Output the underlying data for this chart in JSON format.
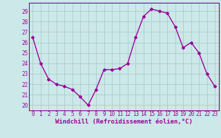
{
  "x": [
    0,
    1,
    2,
    3,
    4,
    5,
    6,
    7,
    8,
    9,
    10,
    11,
    12,
    13,
    14,
    15,
    16,
    17,
    18,
    19,
    20,
    21,
    22,
    23
  ],
  "y": [
    26.5,
    24.0,
    22.5,
    22.0,
    21.8,
    21.5,
    20.8,
    20.0,
    21.5,
    23.4,
    23.4,
    23.5,
    24.0,
    26.5,
    28.5,
    29.2,
    29.0,
    28.8,
    27.5,
    25.5,
    26.0,
    25.0,
    23.0,
    21.8
  ],
  "color": "#990099",
  "bg_color": "#cce8e8",
  "grid_color": "#aacccc",
  "xlabel": "Windchill (Refroidissement éolien,°C)",
  "xlabel_color": "#990099",
  "ylim": [
    19.5,
    29.8
  ],
  "xlim": [
    -0.5,
    23.5
  ],
  "yticks": [
    20,
    21,
    22,
    23,
    24,
    25,
    26,
    27,
    28,
    29
  ],
  "xticks": [
    0,
    1,
    2,
    3,
    4,
    5,
    6,
    7,
    8,
    9,
    10,
    11,
    12,
    13,
    14,
    15,
    16,
    17,
    18,
    19,
    20,
    21,
    22,
    23
  ],
  "marker": "D",
  "markersize": 2.0,
  "linewidth": 1.0,
  "tick_fontsize": 5.5,
  "xlabel_fontsize": 6.5,
  "spine_color": "#880088"
}
